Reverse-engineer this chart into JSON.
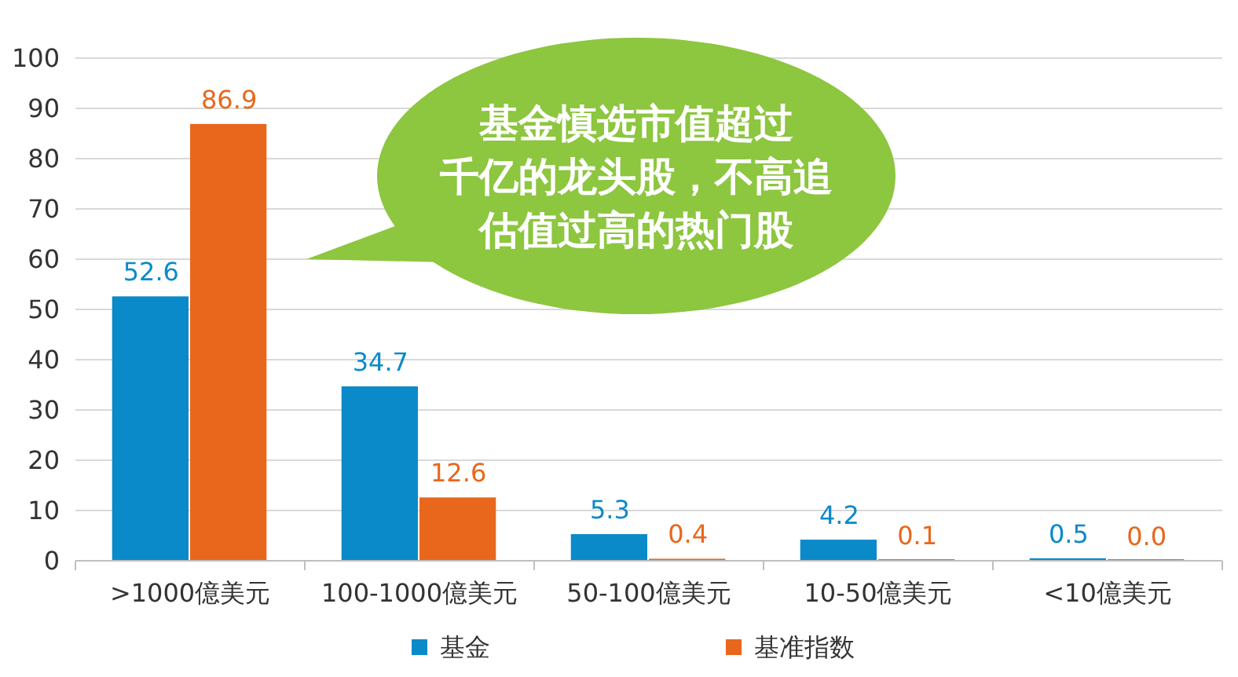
{
  "chart_data": {
    "type": "bar",
    "categories": [
      ">1000億美元",
      "100-1000億美元",
      "50-100億美元",
      "10-50億美元",
      "<10億美元"
    ],
    "series": [
      {
        "name": "基金",
        "color": "#0a8ac9",
        "values": [
          52.6,
          34.7,
          5.3,
          4.2,
          0.5
        ],
        "value_labels": [
          "52.6",
          "34.7",
          "5.3",
          "4.2",
          "0.5"
        ]
      },
      {
        "name": "基准指数",
        "color": "#e8671c",
        "values": [
          86.9,
          12.6,
          0.4,
          0.1,
          0.0
        ],
        "value_labels": [
          "86.9",
          "12.6",
          "0.4",
          "0.1",
          "0.0"
        ]
      }
    ],
    "ylim": [
      0,
      100
    ],
    "yticks": [
      0,
      10,
      20,
      30,
      40,
      50,
      60,
      70,
      80,
      90,
      100
    ],
    "grid": "y",
    "legend": "bottom",
    "annotations": [
      "基金慎选市值超过千亿的龙头股，不高追估值过高的热门股"
    ]
  }
}
